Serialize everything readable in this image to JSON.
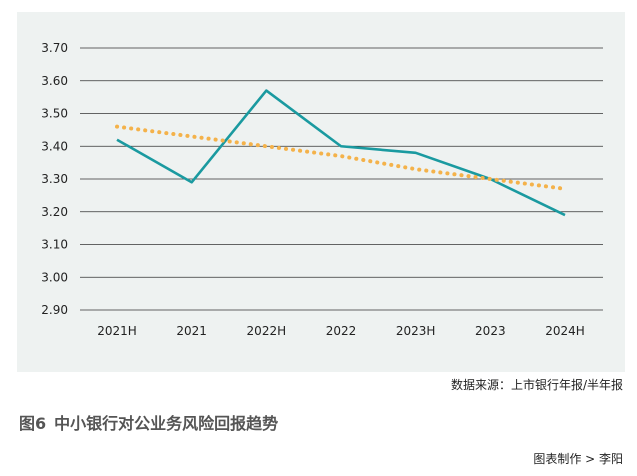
{
  "chart_data": {
    "type": "line",
    "categories": [
      "2021H",
      "2021",
      "2022H",
      "2022",
      "2023H",
      "2023",
      "2024H"
    ],
    "series": [
      {
        "values": [
          3.42,
          3.29,
          3.57,
          3.4,
          3.38,
          3.3,
          3.19
        ],
        "color": "#1a9aa0",
        "style": "solid"
      },
      {
        "trend": true,
        "values": [
          3.46,
          3.43,
          3.4,
          3.37,
          3.33,
          3.3,
          3.27
        ],
        "color": "#f4b24a",
        "style": "dotted"
      }
    ],
    "ylim": [
      2.9,
      3.7
    ],
    "yticks": [
      "2.90",
      "3.00",
      "3.10",
      "3.20",
      "3.30",
      "3.40",
      "3.50",
      "3.60",
      "3.70"
    ],
    "grid": true,
    "background": "#eef2f1"
  },
  "source_text": "数据来源：上市银行年报/半年报",
  "figure": {
    "number": "图6",
    "title": "中小银行对公业务风险回报趋势"
  },
  "credit_text": "图表制作 > 李阳"
}
